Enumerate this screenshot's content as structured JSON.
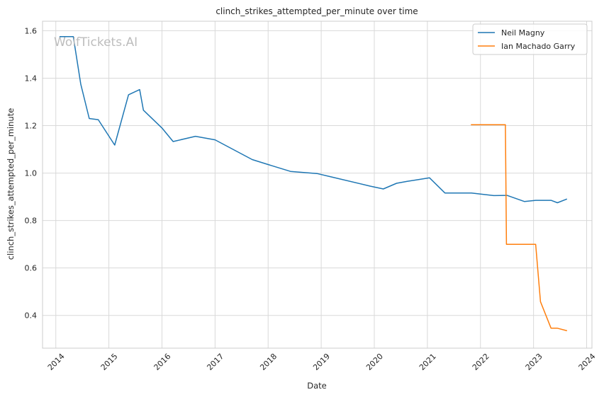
{
  "chart_data": {
    "type": "line",
    "title": "clinch_strikes_attempted_per_minute over time",
    "xlabel": "Date",
    "ylabel": "clinch_strikes_attempted_per_minute",
    "watermark": "WolfTickets.AI",
    "grid": true,
    "legend_position": "top-right",
    "xlim": [
      2013.75,
      2024.1
    ],
    "ylim": [
      0.262,
      1.64
    ],
    "x_ticks": [
      2014,
      2015,
      2016,
      2017,
      2018,
      2019,
      2020,
      2021,
      2022,
      2023,
      2024
    ],
    "x_tick_labels": [
      "2014",
      "2015",
      "2016",
      "2017",
      "2018",
      "2019",
      "2020",
      "2021",
      "2022",
      "2023",
      "2024"
    ],
    "y_ticks": [
      0.4,
      0.6,
      0.8,
      1.0,
      1.2,
      1.4,
      1.6
    ],
    "y_tick_labels": [
      "0.4",
      "0.6",
      "0.8",
      "1.0",
      "1.2",
      "1.4",
      "1.6"
    ],
    "series": [
      {
        "name": "Neil Magny",
        "color": "#1f77b4",
        "x": [
          2014.08,
          2014.33,
          2014.47,
          2014.63,
          2014.8,
          2015.11,
          2015.37,
          2015.58,
          2015.65,
          2016.0,
          2016.21,
          2016.63,
          2017.0,
          2017.7,
          2018.0,
          2018.42,
          2018.92,
          2019.17,
          2019.92,
          2020.17,
          2020.42,
          2020.62,
          2021.04,
          2021.33,
          2021.83,
          2022.25,
          2022.5,
          2022.83,
          2023.04,
          2023.33,
          2023.45,
          2023.62
        ],
        "y": [
          1.575,
          1.575,
          1.375,
          1.23,
          1.225,
          1.118,
          1.33,
          1.352,
          1.265,
          1.19,
          1.133,
          1.155,
          1.14,
          1.057,
          1.036,
          1.007,
          0.998,
          0.985,
          0.945,
          0.933,
          0.957,
          0.965,
          0.98,
          0.916,
          0.916,
          0.905,
          0.906,
          0.88,
          0.885,
          0.885,
          0.875,
          0.89
        ]
      },
      {
        "name": "Ian Machado Garry",
        "color": "#ff7f0e",
        "x": [
          2021.83,
          2022.47,
          2022.49,
          2023.04,
          2023.13,
          2023.33,
          2023.45,
          2023.62
        ],
        "y": [
          1.204,
          1.204,
          0.7,
          0.7,
          0.458,
          0.346,
          0.346,
          0.336
        ]
      }
    ]
  }
}
